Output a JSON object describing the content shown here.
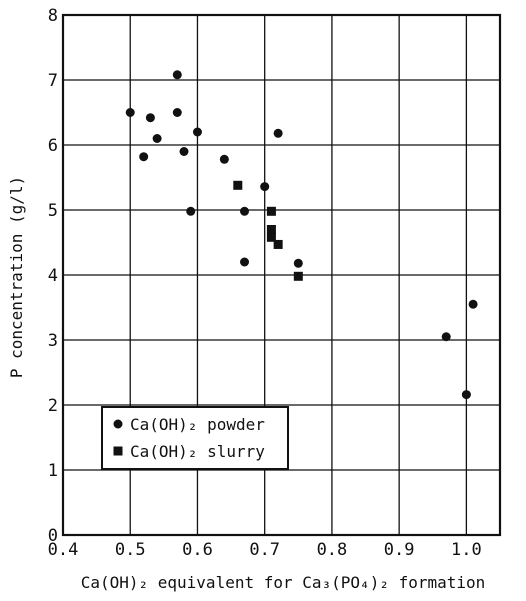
{
  "chart_data": {
    "type": "scatter",
    "xlabel": "Ca(OH)₂ equivalent for Ca₃(PO₄)₂ formation",
    "ylabel": "P concentration (g/l)",
    "xlim": [
      0.4,
      1.05
    ],
    "ylim": [
      0,
      8
    ],
    "grid": true,
    "legend_position": "bottom-left",
    "x_ticks": [
      "0.4",
      "0.5",
      "0.6",
      "0.7",
      "0.8",
      "0.9",
      "1.0"
    ],
    "y_ticks": [
      "0",
      "1",
      "2",
      "3",
      "4",
      "5",
      "6",
      "7",
      "8"
    ],
    "series": [
      {
        "name": "Ca(OH)₂ powder",
        "marker": "circle",
        "points": [
          {
            "x": 0.5,
            "y": 6.5
          },
          {
            "x": 0.52,
            "y": 5.82
          },
          {
            "x": 0.53,
            "y": 6.42
          },
          {
            "x": 0.54,
            "y": 6.1
          },
          {
            "x": 0.57,
            "y": 7.08
          },
          {
            "x": 0.57,
            "y": 6.5
          },
          {
            "x": 0.58,
            "y": 5.9
          },
          {
            "x": 0.59,
            "y": 4.98
          },
          {
            "x": 0.6,
            "y": 6.2
          },
          {
            "x": 0.64,
            "y": 5.78
          },
          {
            "x": 0.67,
            "y": 4.98
          },
          {
            "x": 0.67,
            "y": 4.2
          },
          {
            "x": 0.7,
            "y": 5.36
          },
          {
            "x": 0.72,
            "y": 6.18
          },
          {
            "x": 0.75,
            "y": 4.18
          },
          {
            "x": 0.97,
            "y": 3.05
          },
          {
            "x": 1.0,
            "y": 2.16
          },
          {
            "x": 1.01,
            "y": 3.55
          }
        ]
      },
      {
        "name": "Ca(OH)₂ slurry",
        "marker": "square",
        "points": [
          {
            "x": 0.66,
            "y": 5.38
          },
          {
            "x": 0.71,
            "y": 4.98
          },
          {
            "x": 0.71,
            "y": 4.7
          },
          {
            "x": 0.71,
            "y": 4.58
          },
          {
            "x": 0.72,
            "y": 4.47
          },
          {
            "x": 0.75,
            "y": 3.98
          }
        ]
      }
    ]
  }
}
